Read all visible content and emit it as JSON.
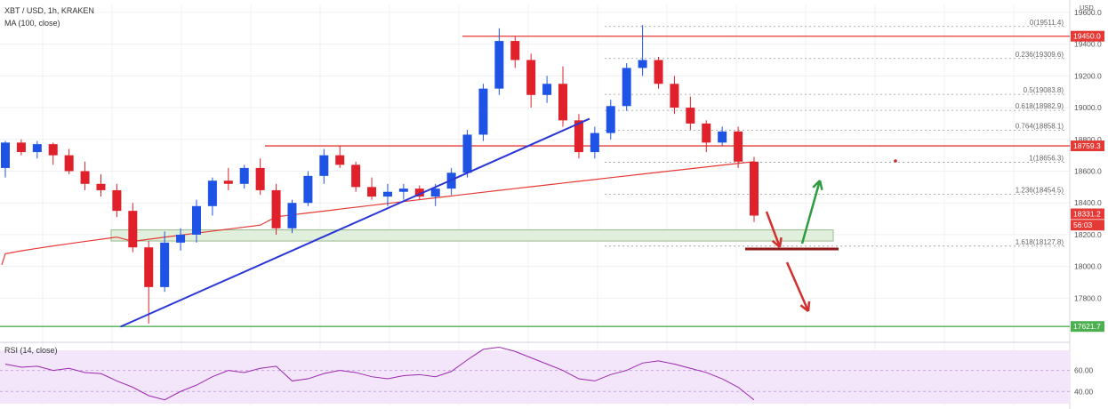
{
  "header": {
    "symbol_line": "XBT / USD, 1h, KRAKEN",
    "ma_label": "MA (100, close)"
  },
  "rsi": {
    "label": "RSI (14, close)",
    "ticks": [
      "60.00",
      "40.00"
    ]
  },
  "chart_data": {
    "type": "candlestick",
    "title": "XBT / USD, 1h, KRAKEN",
    "currency": "USD",
    "ylim": [
      17550,
      19650
    ],
    "y_ticks": [
      {
        "value": 19600,
        "label": "19600.0"
      },
      {
        "value": 19400,
        "label": "19400.0"
      },
      {
        "value": 19200,
        "label": "19200.0"
      },
      {
        "value": 19000,
        "label": "19000.0"
      },
      {
        "value": 18800,
        "label": "18800.0"
      },
      {
        "value": 18600,
        "label": "18600.0"
      },
      {
        "value": 18400,
        "label": "18400.0"
      },
      {
        "value": 18200,
        "label": "18200.0"
      },
      {
        "value": 18000,
        "label": "18000.0"
      },
      {
        "value": 17800,
        "label": "17800.0"
      }
    ],
    "price_labels": [
      {
        "value": 19450,
        "label": "19450.0",
        "color": "#e53935"
      },
      {
        "value": 18759.3,
        "label": "18759.3",
        "color": "#e53935"
      },
      {
        "value": 18331.2,
        "label": "18331.2",
        "color": "#e53935"
      },
      {
        "value": 18260,
        "label": "56:03",
        "color": "#e53935"
      },
      {
        "value": 17621.7,
        "label": "17621.7",
        "color": "#4caf50"
      }
    ],
    "horizontal_lines": [
      {
        "value": 19450,
        "color": "#e53935"
      },
      {
        "value": 18759.3,
        "color": "#e53935"
      },
      {
        "value": 17621.7,
        "color": "#4caf50"
      }
    ],
    "fibonacci": [
      {
        "label": "0(19511.4)",
        "value": 19511.4
      },
      {
        "label": "0.236(19309.6)",
        "value": 19309.6
      },
      {
        "label": "0.5(19083.8)",
        "value": 19083.8
      },
      {
        "label": "0.618(18982.9)",
        "value": 18982.9
      },
      {
        "label": "0.764(18858.1)",
        "value": 18858.1
      },
      {
        "label": "1(18656.3)",
        "value": 18656.3
      },
      {
        "label": "1.236(18454.5)",
        "value": 18454.5
      },
      {
        "label": "1.618(18127.8)",
        "value": 18127.8
      }
    ],
    "support_zone": [
      18160,
      18230
    ],
    "trendline": [
      {
        "index": 7,
        "value": 17620
      },
      {
        "index": 36,
        "value": 18930
      }
    ],
    "candles": [
      [
        18620,
        18790,
        18560,
        18780
      ],
      [
        18780,
        18800,
        18700,
        18720
      ],
      [
        18720,
        18790,
        18680,
        18770
      ],
      [
        18770,
        18780,
        18640,
        18700
      ],
      [
        18700,
        18740,
        18580,
        18600
      ],
      [
        18600,
        18660,
        18480,
        18520
      ],
      [
        18520,
        18580,
        18440,
        18480
      ],
      [
        18480,
        18520,
        18310,
        18350
      ],
      [
        18350,
        18400,
        18090,
        18120
      ],
      [
        18120,
        18160,
        17640,
        17870
      ],
      [
        17870,
        18220,
        17840,
        18150
      ],
      [
        18150,
        18240,
        18100,
        18200
      ],
      [
        18200,
        18420,
        18150,
        18380
      ],
      [
        18380,
        18560,
        18320,
        18540
      ],
      [
        18540,
        18620,
        18480,
        18520
      ],
      [
        18520,
        18640,
        18490,
        18620
      ],
      [
        18620,
        18680,
        18450,
        18480
      ],
      [
        18480,
        18520,
        18200,
        18240
      ],
      [
        18240,
        18420,
        18210,
        18400
      ],
      [
        18400,
        18600,
        18380,
        18570
      ],
      [
        18570,
        18740,
        18520,
        18700
      ],
      [
        18700,
        18760,
        18620,
        18640
      ],
      [
        18640,
        18660,
        18470,
        18500
      ],
      [
        18500,
        18560,
        18420,
        18440
      ],
      [
        18440,
        18520,
        18380,
        18470
      ],
      [
        18470,
        18520,
        18420,
        18490
      ],
      [
        18490,
        18510,
        18420,
        18440
      ],
      [
        18440,
        18520,
        18380,
        18490
      ],
      [
        18490,
        18620,
        18450,
        18590
      ],
      [
        18590,
        18860,
        18560,
        18830
      ],
      [
        18830,
        19150,
        18790,
        19120
      ],
      [
        19120,
        19500,
        19080,
        19420
      ],
      [
        19420,
        19450,
        19250,
        19300
      ],
      [
        19300,
        19340,
        19000,
        19080
      ],
      [
        19080,
        19200,
        19030,
        19150
      ],
      [
        19150,
        19260,
        18880,
        18920
      ],
      [
        18920,
        18960,
        18680,
        18720
      ],
      [
        18720,
        18880,
        18680,
        18840
      ],
      [
        18840,
        19050,
        18800,
        19010
      ],
      [
        19010,
        19280,
        18980,
        19250
      ],
      [
        19250,
        19520,
        19200,
        19300
      ],
      [
        19300,
        19320,
        19120,
        19150
      ],
      [
        19150,
        19200,
        18960,
        19000
      ],
      [
        19000,
        19070,
        18860,
        18900
      ],
      [
        18900,
        18920,
        18720,
        18780
      ],
      [
        18780,
        18880,
        18760,
        18850
      ],
      [
        18850,
        18880,
        18620,
        18660
      ],
      [
        18660,
        18690,
        18280,
        18320
      ]
    ]
  }
}
